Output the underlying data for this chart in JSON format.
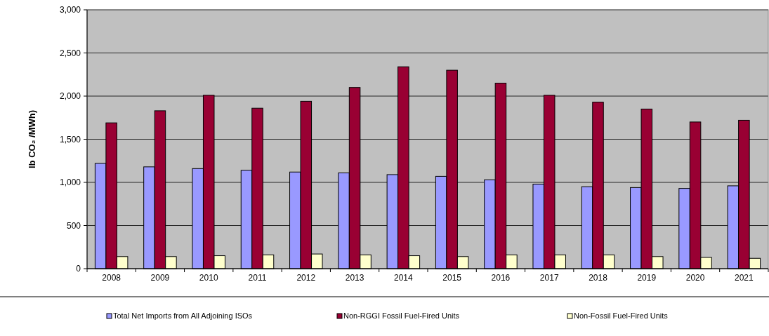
{
  "chart_data": {
    "type": "bar",
    "ylabel": "lb CO₂ /MWh)",
    "categories": [
      "2008",
      "2009",
      "2010",
      "2011",
      "2012",
      "2013",
      "2014",
      "2015",
      "2016",
      "2017",
      "2018",
      "2019",
      "2020",
      "2021"
    ],
    "series": [
      {
        "name": "Total Net Imports from All Adjoining ISOs",
        "color": "#9999ff",
        "values": [
          1220,
          1180,
          1160,
          1140,
          1120,
          1110,
          1090,
          1070,
          1030,
          980,
          950,
          940,
          930,
          960
        ]
      },
      {
        "name": "Non-RGGI Fossil Fuel-Fired Units",
        "color": "#990033",
        "values": [
          1690,
          1830,
          2010,
          1860,
          1940,
          2100,
          2340,
          2300,
          2150,
          2010,
          1930,
          1850,
          1700,
          1720
        ]
      },
      {
        "name": "Non-Fossil Fuel-Fired Units",
        "color": "#ffffcc",
        "values": [
          140,
          140,
          150,
          160,
          170,
          160,
          150,
          140,
          160,
          160,
          160,
          140,
          130,
          120
        ]
      }
    ],
    "ylim": [
      0,
      3000
    ],
    "yticks": [
      {
        "value": 0,
        "label": "0"
      },
      {
        "value": 500,
        "label": "500"
      },
      {
        "value": 1000,
        "label": "1,000"
      },
      {
        "value": 1500,
        "label": "1,500"
      },
      {
        "value": 2000,
        "label": "2,000"
      },
      {
        "value": 2500,
        "label": "2,500"
      },
      {
        "value": 3000,
        "label": "3,000"
      }
    ],
    "grid": "y",
    "legend": "bottom"
  }
}
